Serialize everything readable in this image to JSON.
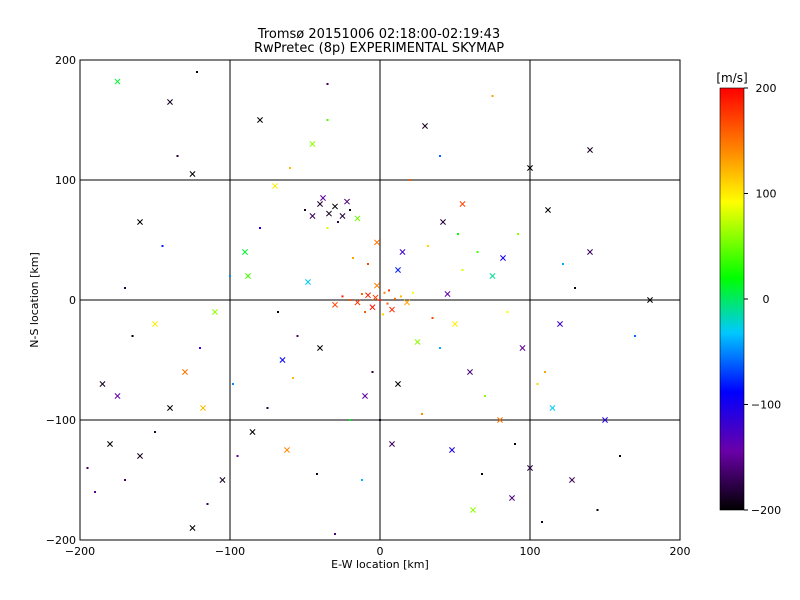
{
  "chart_data": {
    "type": "scatter",
    "title": "Tromsø 20151006 02:18:00-02:19:43",
    "subtitle": "RwPretec (8p) EXPERIMENTAL SKYMAP",
    "xlabel": "E-W location [km]",
    "ylabel": "N-S location [km]",
    "xlim": [
      -200,
      200
    ],
    "ylim": [
      -200,
      200
    ],
    "x_ticks": [
      -200,
      -100,
      0,
      100,
      200
    ],
    "y_ticks": [
      -200,
      -100,
      0,
      100,
      200
    ],
    "grid": true,
    "colorbar": {
      "label": "[m/s]",
      "range": [
        -200,
        200
      ],
      "ticks": [
        200,
        100,
        0,
        -100,
        -200
      ],
      "colors": [
        "#000000",
        "#6a00a8",
        "#0000ff",
        "#00c8ff",
        "#00ff00",
        "#ffff00",
        "#ff8000",
        "#ff0000"
      ]
    },
    "marker_types": [
      "dot",
      "cross"
    ],
    "points": [
      [
        -3,
        2,
        170,
        "cross"
      ],
      [
        0,
        0,
        190,
        "dot"
      ],
      [
        5,
        -3,
        160,
        "dot"
      ],
      [
        -8,
        4,
        185,
        "cross"
      ],
      [
        10,
        1,
        150,
        "dot"
      ],
      [
        -15,
        -2,
        175,
        "cross"
      ],
      [
        3,
        6,
        140,
        "dot"
      ],
      [
        -5,
        -6,
        195,
        "cross"
      ],
      [
        14,
        3,
        120,
        "dot"
      ],
      [
        -20,
        0,
        165,
        "dot"
      ],
      [
        8,
        -8,
        180,
        "cross"
      ],
      [
        -12,
        5,
        155,
        "dot"
      ],
      [
        18,
        -2,
        130,
        "cross"
      ],
      [
        -25,
        3,
        185,
        "dot"
      ],
      [
        2,
        -12,
        110,
        "dot"
      ],
      [
        -2,
        12,
        145,
        "cross"
      ],
      [
        22,
        6,
        90,
        "dot"
      ],
      [
        -30,
        -4,
        170,
        "cross"
      ],
      [
        6,
        8,
        180,
        "dot"
      ],
      [
        -10,
        -10,
        160,
        "dot"
      ],
      [
        -34,
        72,
        -190,
        "cross"
      ],
      [
        -30,
        78,
        -200,
        "cross"
      ],
      [
        -25,
        70,
        -180,
        "cross"
      ],
      [
        -20,
        75,
        -195,
        "dot"
      ],
      [
        -40,
        80,
        -185,
        "cross"
      ],
      [
        -45,
        70,
        -170,
        "cross"
      ],
      [
        -28,
        65,
        -175,
        "dot"
      ],
      [
        -22,
        82,
        -160,
        "cross"
      ],
      [
        -35,
        60,
        80,
        "dot"
      ],
      [
        -15,
        68,
        50,
        "cross"
      ],
      [
        -50,
        75,
        -190,
        "dot"
      ],
      [
        -38,
        85,
        -150,
        "cross"
      ],
      [
        -60,
        110,
        120,
        "dot"
      ],
      [
        -45,
        130,
        60,
        "cross"
      ],
      [
        -35,
        150,
        40,
        "dot"
      ],
      [
        -70,
        95,
        100,
        "cross"
      ],
      [
        -80,
        60,
        -100,
        "dot"
      ],
      [
        -90,
        40,
        10,
        "cross"
      ],
      [
        -100,
        20,
        -50,
        "dot"
      ],
      [
        -110,
        -10,
        60,
        "cross"
      ],
      [
        -120,
        -40,
        -120,
        "dot"
      ],
      [
        -130,
        -60,
        150,
        "cross"
      ],
      [
        -140,
        -90,
        -200,
        "cross"
      ],
      [
        -150,
        -110,
        -180,
        "dot"
      ],
      [
        -160,
        -130,
        -190,
        "cross"
      ],
      [
        -170,
        -150,
        -170,
        "dot"
      ],
      [
        -180,
        -120,
        -200,
        "cross"
      ],
      [
        -190,
        -160,
        -150,
        "dot"
      ],
      [
        -175,
        -80,
        -140,
        "cross"
      ],
      [
        -165,
        -30,
        -200,
        "dot"
      ],
      [
        40,
        -40,
        -40,
        "dot"
      ],
      [
        50,
        -20,
        100,
        "cross"
      ],
      [
        60,
        -60,
        -160,
        "cross"
      ],
      [
        70,
        -80,
        60,
        "dot"
      ],
      [
        80,
        -100,
        150,
        "cross"
      ],
      [
        90,
        -120,
        -200,
        "dot"
      ],
      [
        100,
        -140,
        -180,
        "cross"
      ],
      [
        110,
        -60,
        130,
        "dot"
      ],
      [
        120,
        -20,
        -120,
        "cross"
      ],
      [
        130,
        10,
        -190,
        "dot"
      ],
      [
        140,
        40,
        -170,
        "cross"
      ],
      [
        150,
        -100,
        -110,
        "cross"
      ],
      [
        160,
        -130,
        -200,
        "dot"
      ],
      [
        170,
        -30,
        -60,
        "dot"
      ],
      [
        180,
        0,
        -200,
        "cross"
      ],
      [
        -5,
        -60,
        -180,
        "dot"
      ],
      [
        -10,
        -80,
        -150,
        "cross"
      ],
      [
        0,
        -100,
        -190,
        "dot"
      ],
      [
        8,
        -120,
        -170,
        "cross"
      ],
      [
        -20,
        -100,
        10,
        "dot"
      ],
      [
        -40,
        -40,
        -200,
        "cross"
      ],
      [
        -55,
        -30,
        -160,
        "dot"
      ],
      [
        -65,
        -50,
        -90,
        "cross"
      ],
      [
        -75,
        -90,
        -180,
        "dot"
      ],
      [
        -85,
        -110,
        -200,
        "cross"
      ],
      [
        -95,
        -130,
        -150,
        "dot"
      ],
      [
        -105,
        -150,
        -190,
        "cross"
      ],
      [
        -115,
        -170,
        -170,
        "dot"
      ],
      [
        -125,
        -190,
        -200,
        "cross"
      ],
      [
        -30,
        -195,
        -160,
        "dot"
      ],
      [
        20,
        100,
        160,
        "dot"
      ],
      [
        30,
        145,
        -190,
        "cross"
      ],
      [
        40,
        120,
        -60,
        "dot"
      ],
      [
        55,
        80,
        170,
        "cross"
      ],
      [
        65,
        40,
        40,
        "dot"
      ],
      [
        75,
        20,
        -10,
        "cross"
      ],
      [
        85,
        -10,
        90,
        "dot"
      ],
      [
        95,
        -40,
        -150,
        "cross"
      ],
      [
        105,
        -70,
        110,
        "dot"
      ],
      [
        115,
        -90,
        -30,
        "cross"
      ],
      [
        -125,
        105,
        -200,
        "cross"
      ],
      [
        -135,
        120,
        -180,
        "dot"
      ],
      [
        -140,
        165,
        -190,
        "cross"
      ],
      [
        -122,
        190,
        -200,
        "dot"
      ],
      [
        -175,
        182,
        10,
        "cross"
      ],
      [
        -80,
        150,
        -200,
        "cross"
      ],
      [
        -35,
        180,
        -170,
        "dot"
      ],
      [
        75,
        170,
        130,
        "dot"
      ],
      [
        100,
        110,
        -200,
        "cross"
      ],
      [
        140,
        125,
        -190,
        "cross"
      ],
      [
        -160,
        65,
        -200,
        "cross"
      ],
      [
        -170,
        10,
        -180,
        "dot"
      ],
      [
        -185,
        -70,
        -190,
        "cross"
      ],
      [
        -195,
        -140,
        -170,
        "dot"
      ],
      [
        -150,
        -20,
        100,
        "cross"
      ],
      [
        -145,
        45,
        -80,
        "dot"
      ],
      [
        -118,
        -90,
        120,
        "cross"
      ],
      [
        -98,
        -70,
        -50,
        "dot"
      ],
      [
        -88,
        20,
        40,
        "cross"
      ],
      [
        -68,
        -10,
        -200,
        "dot"
      ],
      [
        25,
        -35,
        60,
        "cross"
      ],
      [
        35,
        -15,
        170,
        "dot"
      ],
      [
        45,
        5,
        -140,
        "cross"
      ],
      [
        55,
        25,
        80,
        "dot"
      ],
      [
        15,
        40,
        -120,
        "cross"
      ],
      [
        -18,
        35,
        130,
        "dot"
      ],
      [
        -48,
        15,
        -30,
        "cross"
      ],
      [
        -58,
        -65,
        120,
        "dot"
      ],
      [
        12,
        -70,
        -200,
        "cross"
      ],
      [
        28,
        -95,
        140,
        "dot"
      ],
      [
        48,
        -125,
        -100,
        "cross"
      ],
      [
        68,
        -145,
        -200,
        "dot"
      ],
      [
        88,
        -165,
        -160,
        "cross"
      ],
      [
        108,
        -185,
        -190,
        "dot"
      ],
      [
        128,
        -150,
        -170,
        "cross"
      ],
      [
        145,
        -175,
        -200,
        "dot"
      ],
      [
        62,
        -175,
        60,
        "cross"
      ],
      [
        -12,
        -150,
        -40,
        "dot"
      ],
      [
        -62,
        -125,
        140,
        "cross"
      ],
      [
        -42,
        -145,
        -190,
        "dot"
      ],
      [
        -2,
        48,
        150,
        "cross"
      ],
      [
        -8,
        30,
        170,
        "dot"
      ],
      [
        12,
        25,
        -80,
        "cross"
      ],
      [
        32,
        45,
        110,
        "dot"
      ],
      [
        42,
        65,
        -180,
        "cross"
      ],
      [
        52,
        55,
        20,
        "dot"
      ],
      [
        82,
        35,
        -100,
        "cross"
      ],
      [
        92,
        55,
        60,
        "dot"
      ],
      [
        112,
        75,
        -200,
        "cross"
      ],
      [
        122,
        30,
        -40,
        "dot"
      ]
    ]
  }
}
